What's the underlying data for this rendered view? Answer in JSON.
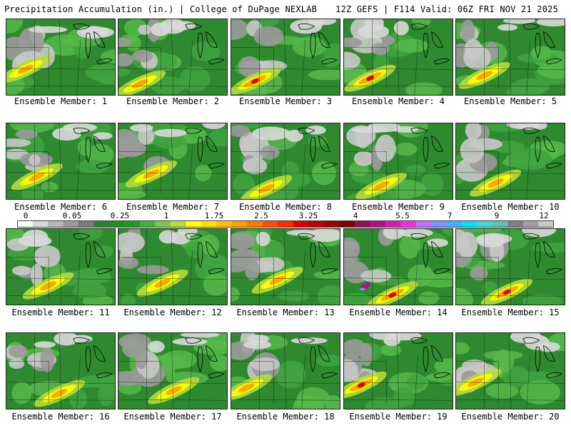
{
  "header": {
    "title_left": "Precipitation Accumulation (in.) | College of DuPage NEXLAB",
    "title_right": "12Z GEFS | F114 Valid: 06Z FRI NOV 21 2025"
  },
  "legend": {
    "labels": [
      "0",
      "0.05",
      "0.25",
      "1",
      "1.75",
      "2.5",
      "3.25",
      "4",
      "5.5",
      "7",
      "9",
      "12"
    ],
    "colors": [
      "#ffffff",
      "#d8d8d8",
      "#b8b8b8",
      "#9a9a9a",
      "#7a7a7a",
      "#2f7f2f",
      "#228b22",
      "#1e9a1e",
      "#3cb33c",
      "#7cc84a",
      "#b6dc3a",
      "#ffff00",
      "#ffe000",
      "#ffc000",
      "#ffa000",
      "#ff7a00",
      "#ff5000",
      "#ff2a00",
      "#e00000",
      "#c00000",
      "#a00000",
      "#800000",
      "#901050",
      "#b01080",
      "#d020b0",
      "#f030e0",
      "#c070ff",
      "#8090ff",
      "#40b0ff",
      "#00e0ff",
      "#40d8d0",
      "#60c0b0",
      "#808080",
      "#a0a0a0",
      "#c8c8c8"
    ]
  },
  "panels": [
    {
      "label": "Ensemble Member: 1",
      "scheme": 1
    },
    {
      "label": "Ensemble Member: 2",
      "scheme": 2
    },
    {
      "label": "Ensemble Member: 3",
      "scheme": 3
    },
    {
      "label": "Ensemble Member: 4",
      "scheme": 4
    },
    {
      "label": "Ensemble Member: 5",
      "scheme": 5
    },
    {
      "label": "Ensemble Member: 6",
      "scheme": 6
    },
    {
      "label": "Ensemble Member: 7",
      "scheme": 7
    },
    {
      "label": "Ensemble Member: 8",
      "scheme": 8
    },
    {
      "label": "Ensemble Member: 9",
      "scheme": 9
    },
    {
      "label": "Ensemble Member: 10",
      "scheme": 10
    },
    {
      "label": "Ensemble Member: 11",
      "scheme": 11
    },
    {
      "label": "Ensemble Member: 12",
      "scheme": 12
    },
    {
      "label": "Ensemble Member: 13",
      "scheme": 13
    },
    {
      "label": "Ensemble Member: 14",
      "scheme": 14
    },
    {
      "label": "Ensemble Member: 15",
      "scheme": 15
    },
    {
      "label": "Ensemble Member: 16",
      "scheme": 16
    },
    {
      "label": "Ensemble Member: 17",
      "scheme": 17
    },
    {
      "label": "Ensemble Member: 18",
      "scheme": 18
    },
    {
      "label": "Ensemble Member: 19",
      "scheme": 19
    },
    {
      "label": "Ensemble Member: 20",
      "scheme": 20
    }
  ]
}
